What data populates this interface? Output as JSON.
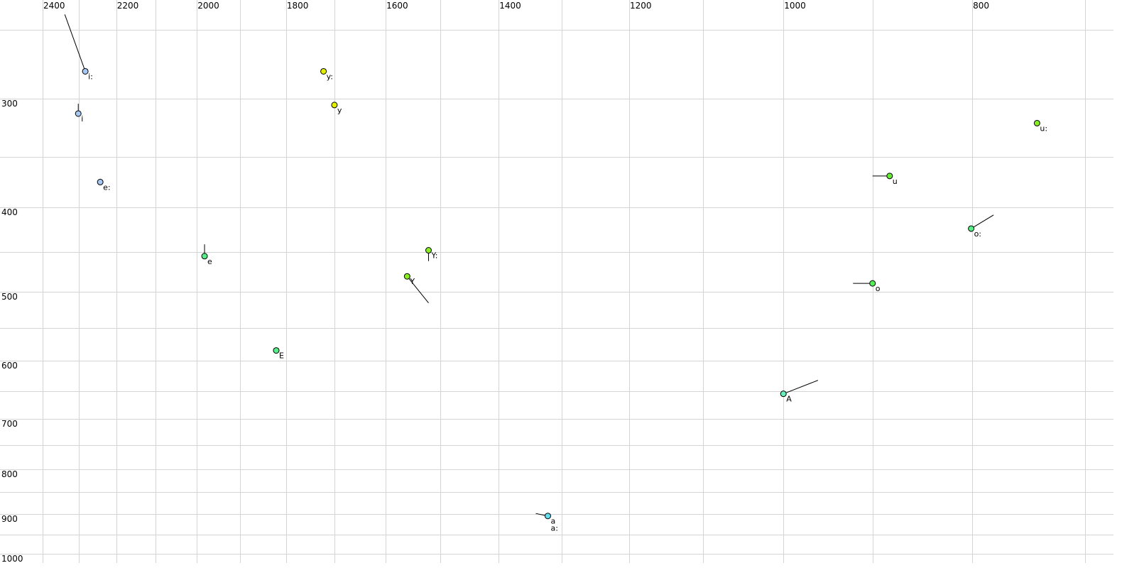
{
  "chart_data": {
    "type": "scatter",
    "title": "",
    "xlabel": "",
    "ylabel": "",
    "x_axis": {
      "quantity": "F2",
      "scale": "log",
      "reversed": true,
      "range": [
        2524,
        677
      ],
      "position": "top",
      "gridlines": [
        700,
        800,
        900,
        1000,
        1100,
        1200,
        1300,
        1400,
        1500,
        1600,
        1700,
        1800,
        1900,
        2000,
        2100,
        2200,
        2300,
        2400
      ],
      "tick_labels": [
        "2400",
        "2200",
        "2000",
        "1800",
        "1600",
        "1400",
        "1200",
        "1000",
        "800"
      ]
    },
    "y_axis": {
      "quantity": "F1",
      "scale": "log",
      "reversed": false,
      "range": [
        231,
        1025
      ],
      "position": "left",
      "gridlines": [
        250,
        300,
        350,
        400,
        450,
        500,
        550,
        600,
        650,
        700,
        750,
        800,
        850,
        900,
        950,
        1000
      ],
      "tick_labels": [
        "300",
        "400",
        "500",
        "600",
        "700",
        "800",
        "900",
        "1000"
      ]
    },
    "grid": true,
    "colors": {
      "grid": "#d4d4d4",
      "tail": "#000000"
    },
    "points": [
      {
        "label": "i:",
        "f2": 2282,
        "f1": 279,
        "tail": [
          2338,
          240
        ],
        "color": "#a8c8f4"
      },
      {
        "label": "i",
        "f2": 2301,
        "f1": 312,
        "tail": [
          2301,
          304
        ],
        "color": "#a8c8f4"
      },
      {
        "label": "e:",
        "f2": 2242,
        "f1": 374,
        "tail": null,
        "color": "#a8c8f4"
      },
      {
        "label": "e",
        "f2": 1982,
        "f1": 455,
        "tail": [
          1982,
          441
        ],
        "color": "#55ee88"
      },
      {
        "label": "E",
        "f2": 1821,
        "f1": 584,
        "tail": null,
        "color": "#55ee88"
      },
      {
        "label": "y:",
        "f2": 1722,
        "f1": 279,
        "tail": null,
        "color": "#e0f000"
      },
      {
        "label": "y",
        "f2": 1700,
        "f1": 305,
        "tail": null,
        "color": "#e0f000"
      },
      {
        "label": "Y:",
        "f2": 1521,
        "f1": 448,
        "tail": [
          1521,
          461
        ],
        "color": "#88ee22"
      },
      {
        "label": "Y",
        "f2": 1560,
        "f1": 480,
        "tail": [
          1521,
          515
        ],
        "color": "#88ee22"
      },
      {
        "label": "u:",
        "f2": 741,
        "f1": 320,
        "tail": null,
        "color": "#88ee22"
      },
      {
        "label": "u",
        "f2": 882,
        "f1": 368,
        "tail": [
          900,
          368
        ],
        "color": "#66ee33"
      },
      {
        "label": "o:",
        "f2": 801,
        "f1": 423,
        "tail": [
          780,
          408
        ],
        "color": "#55ee88"
      },
      {
        "label": "o",
        "f2": 900,
        "f1": 489,
        "tail": [
          921,
          489
        ],
        "color": "#55ee55"
      },
      {
        "label": "A",
        "f2": 1000,
        "f1": 655,
        "tail": [
          960,
          632
        ],
        "color": "#66eebb"
      },
      {
        "label": "a",
        "f2": 1321,
        "f1": 905,
        "tail": [
          1340,
          899
        ],
        "color": "#66ddee"
      },
      {
        "label": "a:",
        "f2": 1321,
        "f1": 905,
        "tail": null,
        "color": "#66ddee"
      }
    ]
  }
}
